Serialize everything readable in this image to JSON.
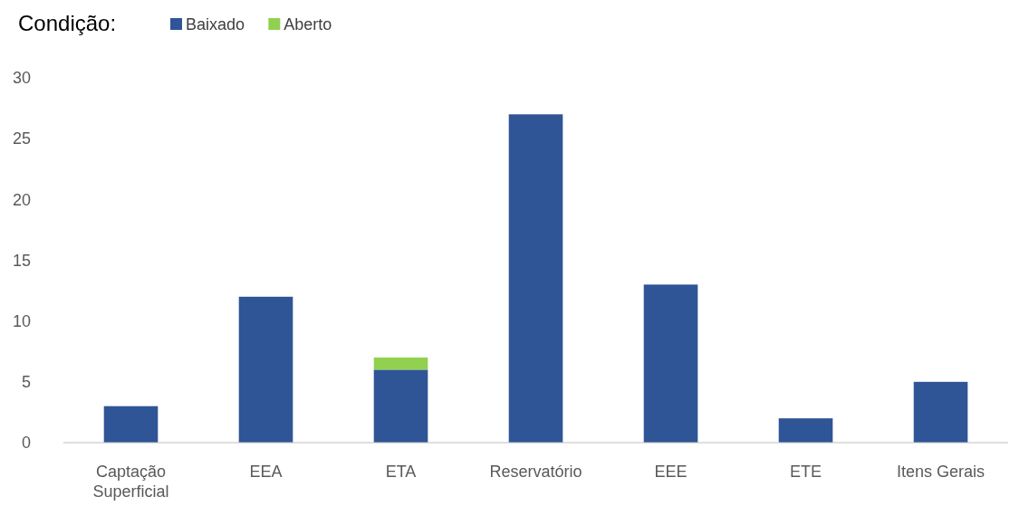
{
  "chart_data": {
    "type": "bar",
    "stacked": true,
    "legend_title": "Condição:",
    "legend": "top left",
    "grid": false,
    "categories": [
      "Captação Superficial",
      "EEA",
      "ETA",
      "Reservatório",
      "EEE",
      "ETE",
      "Itens Gerais"
    ],
    "series": [
      {
        "name": "Baixado",
        "color": "#2f5597",
        "values": [
          3,
          12,
          6,
          27,
          13,
          2,
          5
        ]
      },
      {
        "name": "Aberto",
        "color": "#92d050",
        "values": [
          null,
          null,
          1,
          null,
          null,
          null,
          null
        ]
      }
    ],
    "ylim": [
      0,
      30
    ],
    "yticks": [
      0,
      5,
      10,
      15,
      20,
      25,
      30
    ]
  }
}
